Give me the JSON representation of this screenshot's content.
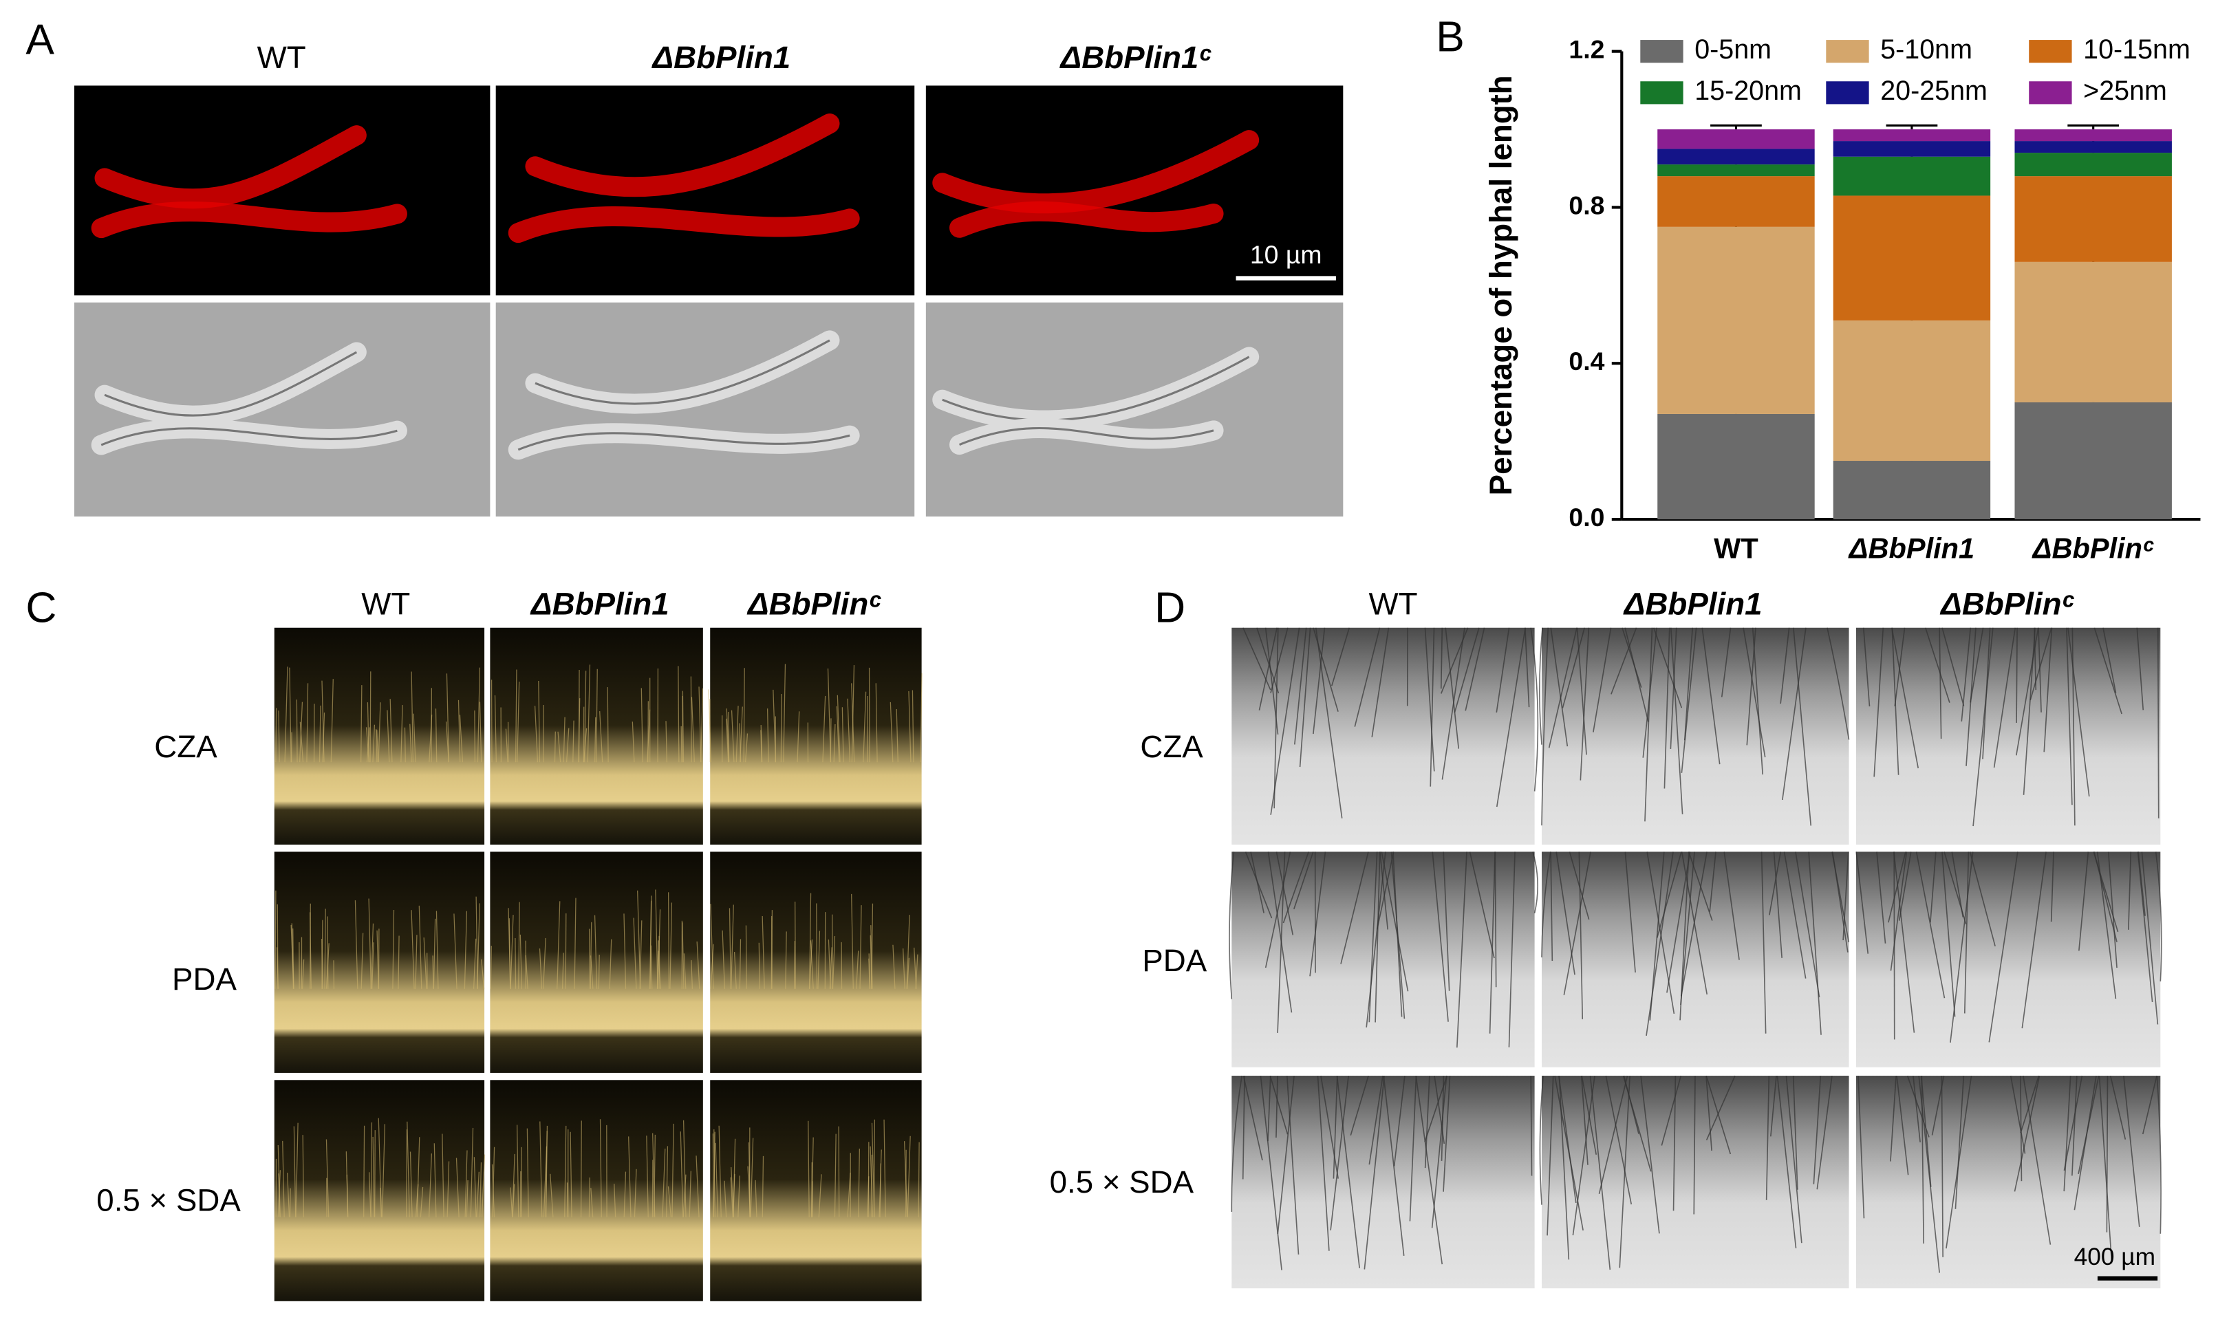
{
  "panels": {
    "A": {
      "label": "A",
      "columns": [
        "WT",
        "ΔBbPlin1",
        "ΔBbPlin1ᶜ"
      ],
      "scale_bar": "10 µm"
    },
    "B": {
      "label": "B"
    },
    "C": {
      "label": "C",
      "columns": [
        "WT",
        "ΔBbPlin1",
        "ΔBbPlinᶜ"
      ],
      "rows": [
        "CZA",
        "PDA",
        "0.5 × SDA"
      ]
    },
    "D": {
      "label": "D",
      "columns": [
        "WT",
        "ΔBbPlin1",
        "ΔBbPlinᶜ"
      ],
      "rows": [
        "CZA",
        "PDA",
        "0.5 × SDA"
      ],
      "scale_bar": "400 µm"
    }
  },
  "chart_data": {
    "type": "stacked_bar",
    "y_label": "Percentage of hyphal length",
    "categories": [
      "WT",
      "ΔBbPlin1",
      "ΔBbPlinᶜ"
    ],
    "ylim": [
      0,
      1.2
    ],
    "yticks": [
      {
        "value": 0,
        "label": "0.0"
      },
      0.4,
      0.8,
      1.2
    ],
    "series": [
      {
        "name": "0-5nm",
        "color": "#6b6b6b",
        "values": [
          0.27,
          0.15,
          0.3
        ],
        "errors": [
          0.02,
          0.07,
          0.07
        ]
      },
      {
        "name": "5-10nm",
        "color": "#d4a66c",
        "values": [
          0.48,
          0.36,
          0.36
        ],
        "errors": [
          0.03,
          0.01,
          0.03
        ]
      },
      {
        "name": "10-15nm",
        "color": "#cc6a14",
        "values": [
          0.13,
          0.32,
          0.22
        ]
      },
      {
        "name": "15-20nm",
        "color": "#17782a",
        "values": [
          0.03,
          0.1,
          0.06
        ],
        "errors": [
          0.02,
          0.01,
          0.04
        ]
      },
      {
        "name": "20-25nm",
        "color": "#141488",
        "values": [
          0.04,
          0.04,
          0.03
        ]
      },
      {
        "name": ">25nm",
        "color": "#8b1f91",
        "values": [
          0.05,
          0.03,
          0.03
        ],
        "errors": [
          0.01,
          0.01,
          0.01
        ]
      }
    ]
  }
}
